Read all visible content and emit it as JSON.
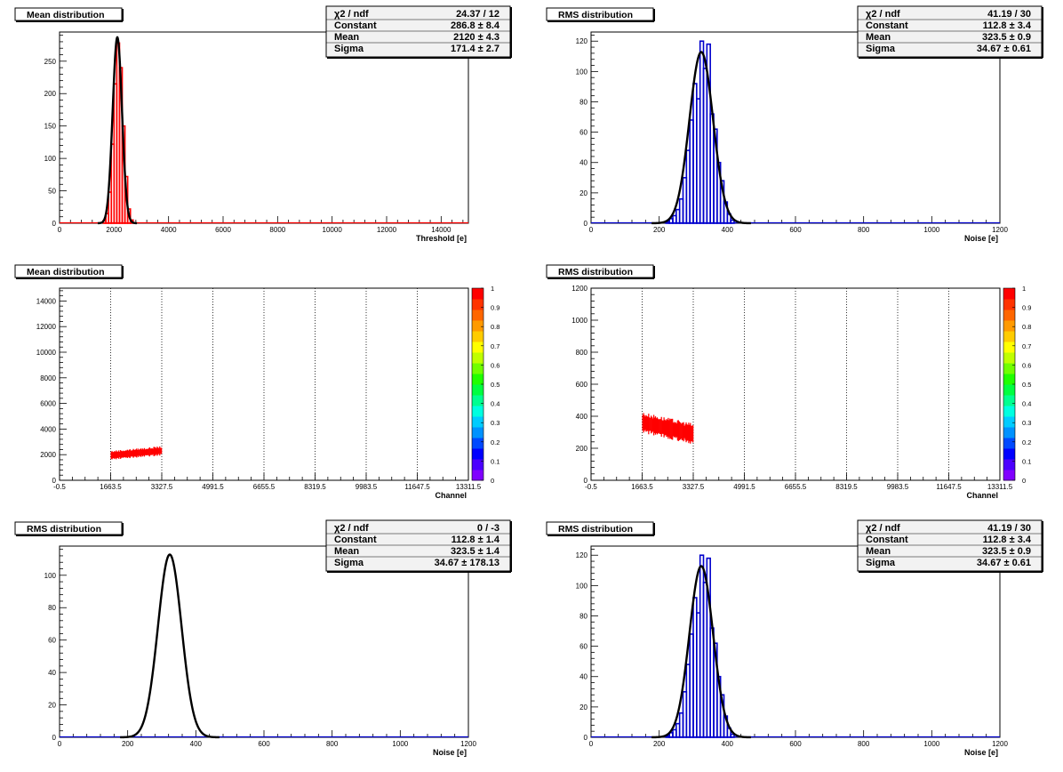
{
  "palette_labels": [
    "0",
    "0.1",
    "0.2",
    "0.3",
    "0.4",
    "0.5",
    "0.6",
    "0.7",
    "0.8",
    "0.9",
    "1"
  ],
  "chart_data": [
    {
      "id": "p1",
      "type": "histogram",
      "title": "Mean distribution",
      "xlabel": "Threshold [e]",
      "xlim": [
        0,
        15000
      ],
      "ylim": [
        0,
        295
      ],
      "xticks": [
        0,
        2000,
        4000,
        6000,
        8000,
        10000,
        12000,
        14000
      ],
      "yticks": [
        0,
        50,
        100,
        150,
        200,
        250
      ],
      "hist_color": "#ff0000",
      "fit_color": "#000000",
      "fit": {
        "constant": 286.8,
        "mean": 2120,
        "sigma": 171.4
      },
      "bins": [
        [
          1600,
          1700,
          4
        ],
        [
          1700,
          1800,
          15
        ],
        [
          1800,
          1900,
          48
        ],
        [
          1900,
          2000,
          122
        ],
        [
          2000,
          2100,
          215
        ],
        [
          2100,
          2200,
          278
        ],
        [
          2200,
          2300,
          240
        ],
        [
          2300,
          2400,
          150
        ],
        [
          2400,
          2500,
          72
        ],
        [
          2500,
          2600,
          22
        ],
        [
          2600,
          2700,
          5
        ]
      ],
      "stats": [
        {
          "label": "χ2 / ndf",
          "value": "24.37 / 12"
        },
        {
          "label": "Constant",
          "value": "286.8 ± 8.4"
        },
        {
          "label": "Mean",
          "value": "2120 ± 4.3"
        },
        {
          "label": "Sigma",
          "value": "171.4 ± 2.7"
        }
      ]
    },
    {
      "id": "p2",
      "type": "histogram",
      "title": "RMS distribution",
      "xlabel": "Noise [e]",
      "xlim": [
        0,
        1200
      ],
      "ylim": [
        0,
        126
      ],
      "xticks": [
        0,
        200,
        400,
        600,
        800,
        1000,
        1200
      ],
      "yticks": [
        0,
        20,
        40,
        60,
        80,
        100,
        120
      ],
      "hist_color": "#0000cc",
      "fit_color": "#000000",
      "fit": {
        "constant": 112.8,
        "mean": 323.5,
        "sigma": 34.67
      },
      "bins": [
        [
          220,
          230,
          1
        ],
        [
          230,
          240,
          3
        ],
        [
          240,
          250,
          5
        ],
        [
          250,
          260,
          9
        ],
        [
          260,
          270,
          16
        ],
        [
          270,
          280,
          30
        ],
        [
          280,
          290,
          48
        ],
        [
          290,
          300,
          68
        ],
        [
          300,
          310,
          92
        ],
        [
          310,
          320,
          82
        ],
        [
          320,
          330,
          120
        ],
        [
          330,
          340,
          102
        ],
        [
          340,
          350,
          118
        ],
        [
          350,
          360,
          72
        ],
        [
          360,
          370,
          62
        ],
        [
          370,
          380,
          40
        ],
        [
          380,
          390,
          28
        ],
        [
          390,
          400,
          14
        ],
        [
          400,
          410,
          6
        ],
        [
          410,
          420,
          2
        ]
      ],
      "stats": [
        {
          "label": "χ2 / ndf",
          "value": "41.19 / 30"
        },
        {
          "label": "Constant",
          "value": "112.8 ± 3.4"
        },
        {
          "label": "Mean",
          "value": "323.5 ± 0.9"
        },
        {
          "label": "Sigma",
          "value": "34.67 ± 0.61"
        }
      ]
    },
    {
      "id": "p3",
      "type": "heatmap",
      "title": "Mean distribution",
      "xlabel": "Channel",
      "xlim": [
        -0.5,
        13311.5
      ],
      "ylim": [
        0,
        15000
      ],
      "xticks": [
        -0.5,
        1663.5,
        3327.5,
        4991.5,
        6655.5,
        8319.5,
        9983.5,
        11647.5,
        13311.5
      ],
      "xtick_labels": [
        "-0.5",
        "1663.5",
        "3327.5",
        "4991.5",
        "6655.5",
        "8319.5",
        "9983.5",
        "11647.5",
        "13311.5"
      ],
      "yticks": [
        0,
        2000,
        4000,
        6000,
        8000,
        10000,
        12000,
        14000
      ],
      "grid_x": [
        1663.5,
        3327.5,
        4991.5,
        6655.5,
        8319.5,
        9983.5,
        11647.5
      ],
      "band": {
        "x0": 1663.5,
        "x1": 3327.5,
        "y_start": 1950,
        "y_end": 2300,
        "half_width": 300
      },
      "zlim": [
        0,
        1
      ],
      "color": "#ff0000"
    },
    {
      "id": "p4",
      "type": "heatmap",
      "title": "RMS distribution",
      "xlabel": "Channel",
      "xlim": [
        -0.5,
        13311.5
      ],
      "ylim": [
        0,
        1200
      ],
      "xticks": [
        -0.5,
        1663.5,
        3327.5,
        4991.5,
        6655.5,
        8319.5,
        9983.5,
        11647.5,
        13311.5
      ],
      "xtick_labels": [
        "-0.5",
        "1663.5",
        "3327.5",
        "4991.5",
        "6655.5",
        "8319.5",
        "9983.5",
        "11647.5",
        "13311.5"
      ],
      "yticks": [
        0,
        200,
        400,
        600,
        800,
        1000,
        1200
      ],
      "grid_x": [
        1663.5,
        3327.5,
        4991.5,
        6655.5,
        8319.5,
        9983.5,
        11647.5
      ],
      "band": {
        "x0": 1663.5,
        "x1": 3327.5,
        "y_start": 360,
        "y_end": 290,
        "half_width": 55
      },
      "zlim": [
        0,
        1
      ],
      "color": "#ff0000"
    },
    {
      "id": "p5",
      "type": "histogram",
      "title": "RMS distribution",
      "xlabel": "Noise [e]",
      "xlim": [
        0,
        1200
      ],
      "ylim": [
        0,
        118
      ],
      "xticks": [
        0,
        200,
        400,
        600,
        800,
        1000,
        1200
      ],
      "yticks": [
        0,
        20,
        40,
        60,
        80,
        100
      ],
      "hist_color": "#0000cc",
      "fit_color": "#000000",
      "fit": {
        "constant": 112.8,
        "mean": 323.5,
        "sigma": 34.67
      },
      "bins": [],
      "stats": [
        {
          "label": "χ2 / ndf",
          "value": "0 / -3"
        },
        {
          "label": "Constant",
          "value": "112.8 ± 1.4"
        },
        {
          "label": "Mean",
          "value": "323.5 ± 1.4"
        },
        {
          "label": "Sigma",
          "value": "34.67 ± 178.13"
        }
      ]
    },
    {
      "id": "p6",
      "type": "histogram",
      "title": "RMS distribution",
      "xlabel": "Noise [e]",
      "xlim": [
        0,
        1200
      ],
      "ylim": [
        0,
        126
      ],
      "xticks": [
        0,
        200,
        400,
        600,
        800,
        1000,
        1200
      ],
      "yticks": [
        0,
        20,
        40,
        60,
        80,
        100,
        120
      ],
      "hist_color": "#0000cc",
      "fit_color": "#000000",
      "fit": {
        "constant": 112.8,
        "mean": 323.5,
        "sigma": 34.67
      },
      "bins": [
        [
          220,
          230,
          1
        ],
        [
          230,
          240,
          3
        ],
        [
          240,
          250,
          5
        ],
        [
          250,
          260,
          9
        ],
        [
          260,
          270,
          16
        ],
        [
          270,
          280,
          30
        ],
        [
          280,
          290,
          48
        ],
        [
          290,
          300,
          68
        ],
        [
          300,
          310,
          92
        ],
        [
          310,
          320,
          82
        ],
        [
          320,
          330,
          120
        ],
        [
          330,
          340,
          102
        ],
        [
          340,
          350,
          118
        ],
        [
          350,
          360,
          72
        ],
        [
          360,
          370,
          62
        ],
        [
          370,
          380,
          40
        ],
        [
          380,
          390,
          28
        ],
        [
          390,
          400,
          14
        ],
        [
          400,
          410,
          6
        ],
        [
          410,
          420,
          2
        ]
      ],
      "stats": [
        {
          "label": "χ2 / ndf",
          "value": "41.19 / 30"
        },
        {
          "label": "Constant",
          "value": "112.8 ± 3.4"
        },
        {
          "label": "Mean",
          "value": "323.5 ± 0.9"
        },
        {
          "label": "Sigma",
          "value": "34.67 ± 0.61"
        }
      ]
    }
  ]
}
